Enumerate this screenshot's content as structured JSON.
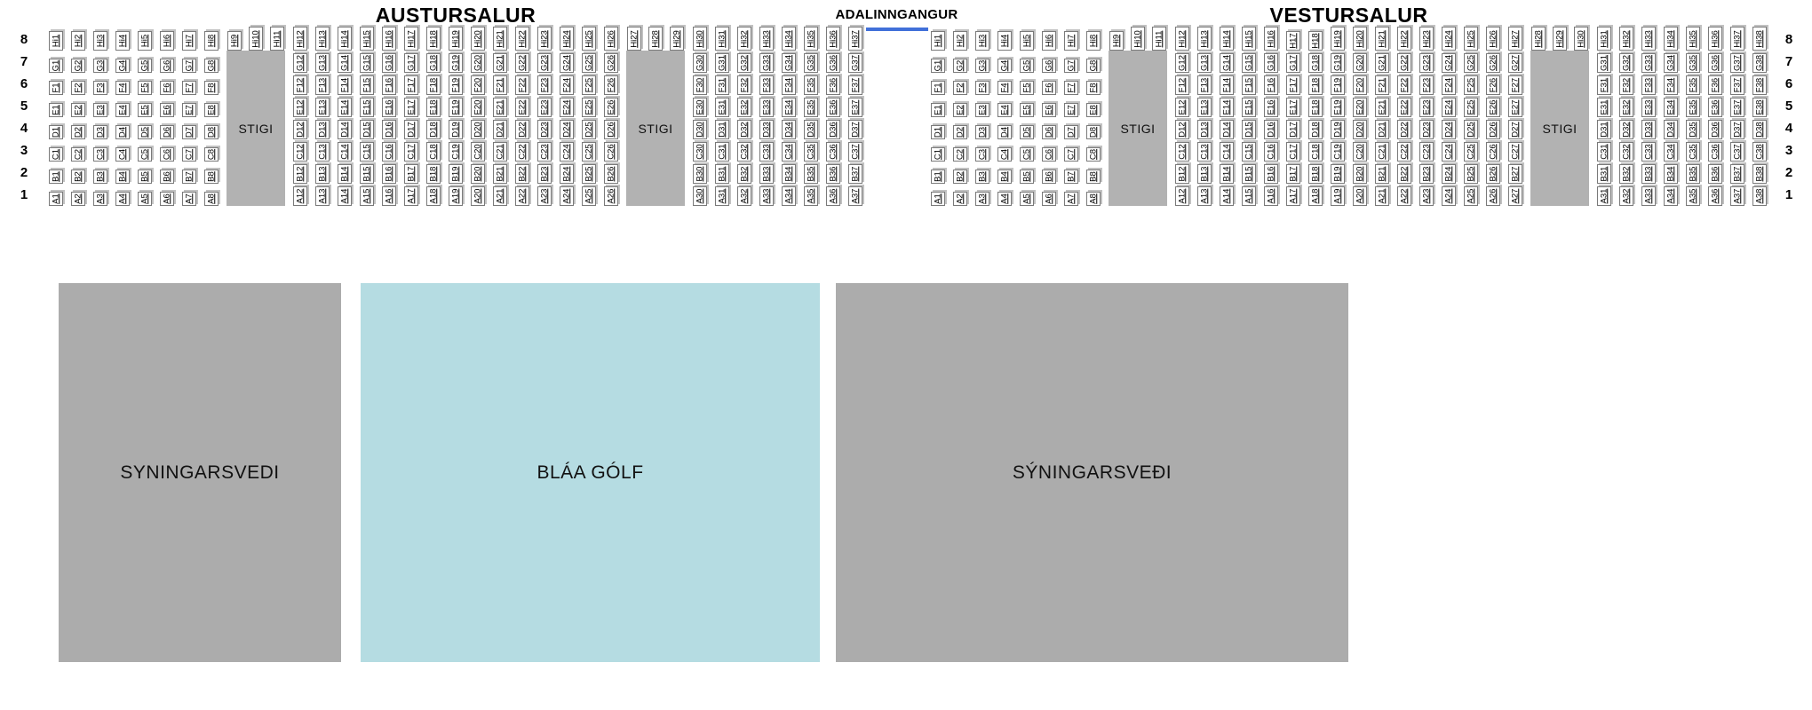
{
  "page": {
    "background": "#ffffff"
  },
  "row_numbers": [
    "8",
    "7",
    "6",
    "5",
    "4",
    "3",
    "2",
    "1"
  ],
  "entrance": {
    "label": "ADALINNGANGUR",
    "line_color": "#4170d9"
  },
  "halls": [
    {
      "id": "austursalur",
      "title": "AUSTURSALUR",
      "rows_top_to_bottom": [
        "Hi",
        "G",
        "F",
        "E",
        "D",
        "C",
        "B",
        "A"
      ],
      "groups": [
        {
          "type": "seats",
          "columns": [
            1,
            2,
            3,
            4,
            5,
            6,
            7,
            8
          ]
        },
        {
          "type": "stairs",
          "label": "STIGI",
          "hi_columns": [
            9,
            10,
            11
          ]
        },
        {
          "type": "seats",
          "columns": [
            12,
            13,
            14,
            15,
            16,
            17,
            18,
            19,
            20,
            21,
            22,
            23,
            24,
            25,
            26
          ]
        },
        {
          "type": "stairs",
          "label": "STIGI",
          "hi_columns": [
            27,
            28,
            29
          ]
        },
        {
          "type": "seats",
          "columns": [
            30,
            31,
            32,
            33,
            34,
            35,
            36,
            37
          ]
        }
      ],
      "label_overrides": {}
    },
    {
      "id": "vestursalur",
      "title": "VESTURSALUR",
      "rows_top_to_bottom": [
        "Hi",
        "G",
        "F",
        "E",
        "D",
        "C",
        "B",
        "A"
      ],
      "groups": [
        {
          "type": "seats",
          "columns": [
            1,
            2,
            3,
            4,
            5,
            6,
            7,
            8
          ]
        },
        {
          "type": "stairs",
          "label": "STIGI",
          "hi_columns": [
            9,
            10,
            11
          ]
        },
        {
          "type": "seats",
          "columns": [
            12,
            13,
            14,
            15,
            16,
            17,
            18,
            19,
            20,
            21,
            22,
            23,
            24,
            25,
            26,
            27
          ]
        },
        {
          "type": "stairs",
          "label": "STIGI",
          "hi_columns": [
            28,
            29,
            30
          ]
        },
        {
          "type": "seats",
          "columns": [
            31,
            32,
            33,
            34,
            35,
            36,
            37,
            38
          ]
        }
      ],
      "label_overrides": {
        "Hi17": "H17",
        "Hi18": "H18"
      }
    }
  ],
  "areas": [
    {
      "label": "SYNINGARSVEDI",
      "color": "#acacac"
    },
    {
      "label": "BLÁA GÓLF",
      "color": "#b5dce2"
    },
    {
      "label": "SÝNINGARSVEÐI",
      "color": "#acacac"
    }
  ],
  "stairs_color": "#b2b2b2",
  "seat_style": {
    "background": "#ffffff",
    "border": "#7a7a7a",
    "shadow": "#c2c2c2"
  }
}
